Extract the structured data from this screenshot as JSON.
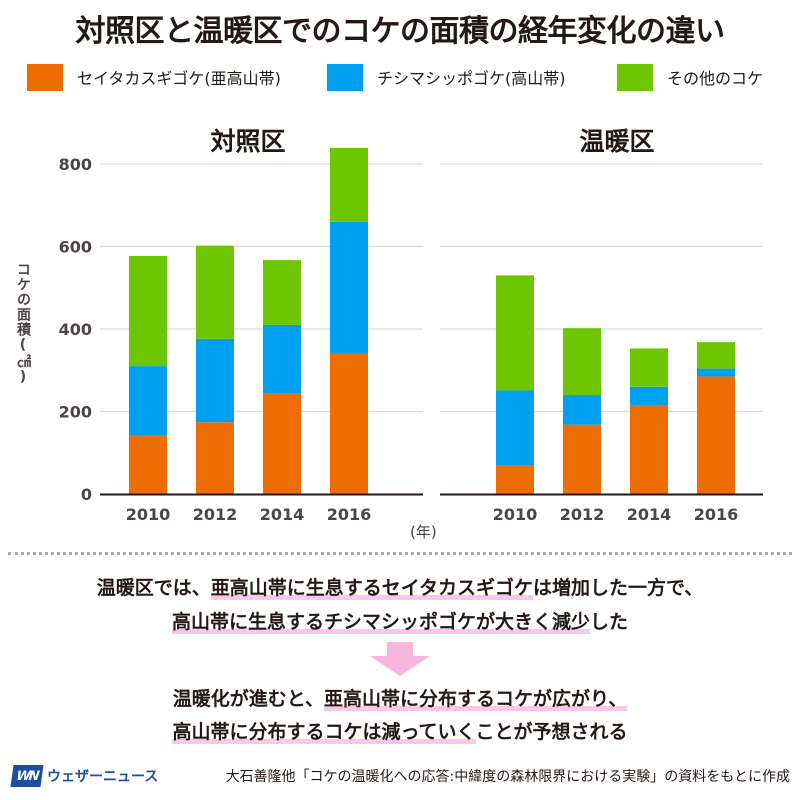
{
  "title": "対照区と温暖区でのコケの面積の経年変化の違い",
  "legend": [
    {
      "label": "セイタカスギゴケ(亜高山帯)",
      "color": "#ED6D00"
    },
    {
      "label": "チシマシッポゴケ(高山帯)",
      "color": "#00A0F0"
    },
    {
      "label": "その他のコケ",
      "color": "#6EC600"
    }
  ],
  "chart_data": [
    {
      "type": "bar",
      "stacked": true,
      "title": "対照区",
      "categories": [
        "2010",
        "2012",
        "2014",
        "2016"
      ],
      "series": [
        {
          "name": "セイタカスギゴケ(亜高山帯)",
          "color": "#ED6D00",
          "values": [
            143,
            174,
            243,
            342
          ]
        },
        {
          "name": "チシマシッポゴケ(高山帯)",
          "color": "#00A0F0",
          "values": [
            167,
            202,
            167,
            318
          ]
        },
        {
          "name": "その他のコケ",
          "color": "#6EC600",
          "values": [
            267,
            226,
            157,
            179
          ]
        }
      ],
      "ylim": [
        0,
        800
      ],
      "yticks": [
        "0",
        "200",
        "400",
        "600",
        "800"
      ],
      "ylabel": "コケの面積(㎠)",
      "xlabel": "(年)",
      "grid": true,
      "legend": "top"
    },
    {
      "type": "bar",
      "stacked": true,
      "title": "温暖区",
      "categories": [
        "2010",
        "2012",
        "2014",
        "2016"
      ],
      "series": [
        {
          "name": "セイタカスギゴケ(亜高山帯)",
          "color": "#ED6D00",
          "values": [
            70,
            168,
            214,
            285
          ]
        },
        {
          "name": "チシマシッポゴケ(高山帯)",
          "color": "#00A0F0",
          "values": [
            181,
            72,
            46,
            19
          ]
        },
        {
          "name": "その他のコケ",
          "color": "#6EC600",
          "values": [
            279,
            162,
            93,
            64
          ]
        }
      ],
      "ylim": [
        0,
        800
      ],
      "grid": true,
      "legend": "top"
    }
  ],
  "summary": {
    "line1": {
      "pre": "温暖区では、",
      "hl": "亜高山帯に生息するセイタカスギゴケ",
      "post": "は増加した一方で、"
    },
    "line2": {
      "pre": "",
      "hl": "高山帯に生息するチシマシッポゴケが大きく減少",
      "post": "した"
    },
    "arrow_color": "#F9B6DC",
    "line3": {
      "pre": "温暖化が進むと、",
      "hl": "亜高山帯に分布するコケが広がり、",
      "post": ""
    },
    "line4": {
      "pre": "",
      "hl": "高山帯に分布するコケは減っていく",
      "post": "ことが予想される"
    }
  },
  "footer": {
    "logo_mark": "WN",
    "logo_text": "ウェザーニュース",
    "source": "大石善隆他「コケの温暖化への応答:中緯度の森林限界における実験」の資料をもとに作成"
  }
}
